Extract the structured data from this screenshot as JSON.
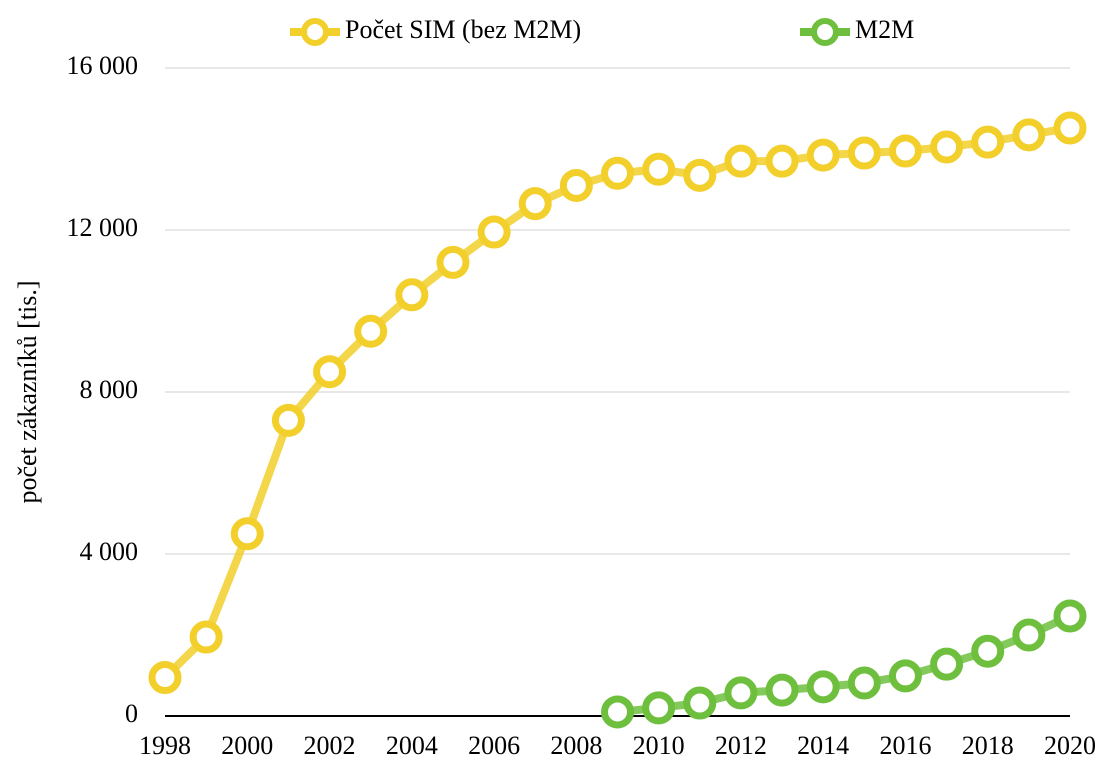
{
  "chart_data": {
    "type": "line",
    "y_label": "počet zákazníků [tis.]",
    "x": [
      1998,
      1999,
      2000,
      2001,
      2002,
      2003,
      2004,
      2005,
      2006,
      2007,
      2008,
      2009,
      2010,
      2011,
      2012,
      2013,
      2014,
      2015,
      2016,
      2017,
      2018,
      2019,
      2020
    ],
    "series": [
      {
        "name": "Počet SIM (bez M2M)",
        "color": "#f2cf2b",
        "values": [
          950,
          1950,
          4500,
          7300,
          8500,
          9500,
          10400,
          11200,
          11950,
          12650,
          13100,
          13400,
          13500,
          13350,
          13700,
          13700,
          13850,
          13900,
          13950,
          14050,
          14170,
          14350,
          14520
        ]
      },
      {
        "name": "M2M",
        "color": "#6fbf3f",
        "values": [
          null,
          null,
          null,
          null,
          null,
          null,
          null,
          null,
          null,
          null,
          null,
          100,
          200,
          320,
          570,
          640,
          720,
          815,
          990,
          1280,
          1600,
          2000,
          2470
        ]
      }
    ],
    "xlim": [
      1998,
      2020
    ],
    "xticks": [
      1998,
      2000,
      2002,
      2004,
      2006,
      2008,
      2010,
      2012,
      2014,
      2016,
      2018,
      2020
    ],
    "ylim": [
      0,
      16000
    ],
    "yticks": [
      0,
      {
        "value": 4000,
        "label": "4 000"
      },
      {
        "value": 8000,
        "label": "8 000"
      },
      {
        "value": 12000,
        "label": "12 000"
      },
      {
        "value": 16000,
        "label": "16 000"
      }
    ],
    "grid": true,
    "legend": "top"
  }
}
